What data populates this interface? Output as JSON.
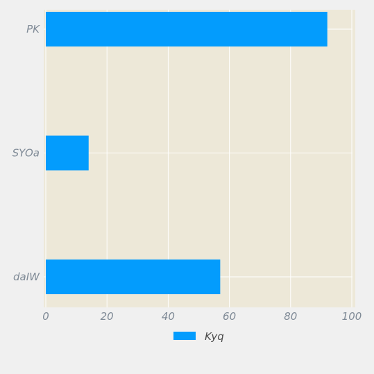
{
  "chart_data": {
    "type": "bar",
    "orientation": "horizontal",
    "categories": [
      "PK",
      "SYOa",
      "daIW"
    ],
    "series": [
      {
        "name": "Kyq",
        "values": [
          92,
          14,
          57
        ],
        "color": "#039cfd"
      }
    ],
    "xlim": [
      0,
      100
    ],
    "x_ticks": [
      "0",
      "20",
      "40",
      "60",
      "80",
      "100"
    ],
    "grid": true,
    "legend_position": "bottom-center",
    "colors": {
      "plot_background": "#ede8d8",
      "figure_background": "#f0f0f0",
      "grid": "#ffffff",
      "tick_text": "#7f8a96"
    }
  }
}
